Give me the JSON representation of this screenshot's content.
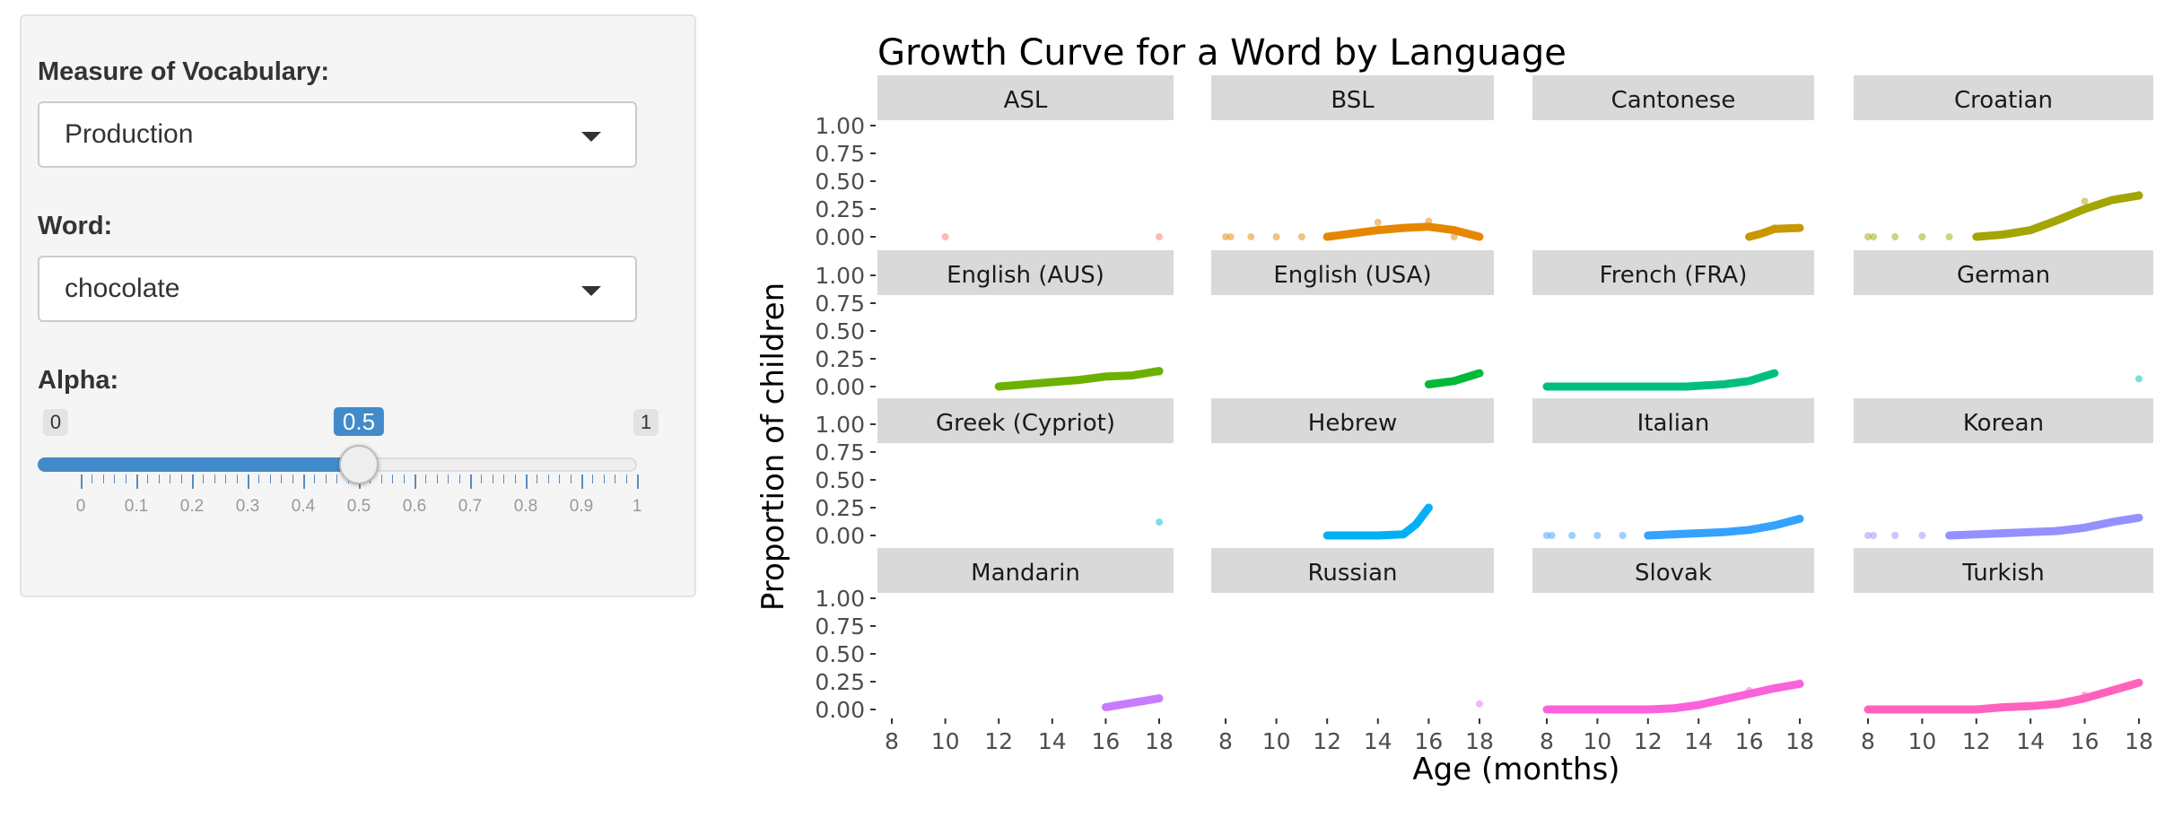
{
  "sidebar": {
    "measure": {
      "label": "Measure of Vocabulary:",
      "value": "Production"
    },
    "word": {
      "label": "Word:",
      "value": "chocolate"
    },
    "alpha": {
      "label": "Alpha:",
      "min": "0",
      "max": "1",
      "value": "0.5",
      "value_fraction": 0.5,
      "ticks": [
        "0",
        "0.1",
        "0.2",
        "0.3",
        "0.4",
        "0.5",
        "0.6",
        "0.7",
        "0.8",
        "0.9",
        "1"
      ]
    }
  },
  "colors": {
    "accent": "#428bca",
    "strip": "#d9d9d9",
    "text": "#333333"
  },
  "chart_data": {
    "type": "line",
    "title": "Growth Curve for a Word by Language",
    "xlabel": "Age (months)",
    "ylabel": "Proportion of children",
    "xlim": [
      8,
      18
    ],
    "ylim": [
      0,
      1
    ],
    "x_ticks": [
      8,
      10,
      12,
      14,
      16,
      18
    ],
    "y_ticks": [
      "0.00",
      "0.25",
      "0.50",
      "0.75",
      "1.00"
    ],
    "grid": false,
    "legend": "none",
    "facets": [
      {
        "name": "ASL",
        "color": "#f8766d",
        "points": [
          [
            10,
            0
          ],
          [
            18,
            0
          ]
        ],
        "curve": []
      },
      {
        "name": "BSL",
        "color": "#e58700",
        "points": [
          [
            8,
            0
          ],
          [
            8.2,
            0
          ],
          [
            9,
            0
          ],
          [
            10,
            0
          ],
          [
            11,
            0
          ],
          [
            12,
            0
          ],
          [
            14,
            0.13
          ],
          [
            16,
            0.14
          ],
          [
            17,
            0
          ],
          [
            18,
            0
          ]
        ],
        "curve": [
          [
            12,
            0
          ],
          [
            13,
            0.03
          ],
          [
            14,
            0.06
          ],
          [
            15,
            0.08
          ],
          [
            16,
            0.09
          ],
          [
            17,
            0.06
          ],
          [
            18,
            0
          ]
        ]
      },
      {
        "name": "Cantonese",
        "color": "#c99800",
        "points": [
          [
            16,
            0
          ],
          [
            17,
            0.08
          ],
          [
            18,
            0.08
          ]
        ],
        "curve": [
          [
            16,
            0
          ],
          [
            16.5,
            0.03
          ],
          [
            17,
            0.07
          ],
          [
            18,
            0.08
          ]
        ]
      },
      {
        "name": "Croatian",
        "color": "#a3a500",
        "points": [
          [
            8,
            0
          ],
          [
            8.2,
            0
          ],
          [
            9,
            0
          ],
          [
            10,
            0
          ],
          [
            11,
            0
          ],
          [
            16,
            0.32
          ],
          [
            18,
            0.38
          ]
        ],
        "curve": [
          [
            12,
            0
          ],
          [
            13,
            0.02
          ],
          [
            14,
            0.06
          ],
          [
            15,
            0.15
          ],
          [
            16,
            0.25
          ],
          [
            17,
            0.33
          ],
          [
            18,
            0.37
          ]
        ]
      },
      {
        "name": "English (AUS)",
        "color": "#6bb100",
        "points": [
          [
            12,
            0
          ],
          [
            18,
            0.13
          ]
        ],
        "curve": [
          [
            12,
            0
          ],
          [
            13,
            0.02
          ],
          [
            14,
            0.04
          ],
          [
            15,
            0.06
          ],
          [
            16,
            0.09
          ],
          [
            17,
            0.1
          ],
          [
            18,
            0.14
          ]
        ]
      },
      {
        "name": "English (USA)",
        "color": "#00ba38",
        "points": [
          [
            16,
            0.02
          ],
          [
            18,
            0.12
          ]
        ],
        "curve": [
          [
            16,
            0.02
          ],
          [
            17,
            0.05
          ],
          [
            18,
            0.12
          ]
        ]
      },
      {
        "name": "French (FRA)",
        "color": "#00bf7d",
        "points": [
          [
            8,
            0
          ],
          [
            13,
            0
          ],
          [
            17,
            0.12
          ]
        ],
        "curve": [
          [
            8,
            0
          ],
          [
            9,
            0
          ],
          [
            10,
            0
          ],
          [
            11,
            0
          ],
          [
            12,
            0
          ],
          [
            13.5,
            0
          ],
          [
            15,
            0.02
          ],
          [
            16,
            0.05
          ],
          [
            17,
            0.12
          ]
        ]
      },
      {
        "name": "German",
        "color": "#00c0b8",
        "points": [
          [
            18,
            0.07
          ]
        ],
        "curve": []
      },
      {
        "name": "Greek (Cypriot)",
        "color": "#00bcd8",
        "points": [
          [
            18,
            0.12
          ]
        ],
        "curve": []
      },
      {
        "name": "Hebrew",
        "color": "#00b0f6",
        "points": [
          [
            16,
            0.25
          ]
        ],
        "curve": [
          [
            12,
            0
          ],
          [
            13,
            0
          ],
          [
            14,
            0
          ],
          [
            15,
            0.01
          ],
          [
            15.5,
            0.1
          ],
          [
            16,
            0.25
          ]
        ]
      },
      {
        "name": "Italian",
        "color": "#35a2ff",
        "points": [
          [
            8,
            0
          ],
          [
            8.2,
            0
          ],
          [
            9,
            0
          ],
          [
            10,
            0
          ],
          [
            11,
            0
          ],
          [
            18,
            0.15
          ]
        ],
        "curve": [
          [
            12,
            0
          ],
          [
            13,
            0.01
          ],
          [
            14,
            0.02
          ],
          [
            15,
            0.03
          ],
          [
            16,
            0.05
          ],
          [
            17,
            0.09
          ],
          [
            18,
            0.15
          ]
        ]
      },
      {
        "name": "Korean",
        "color": "#9590ff",
        "points": [
          [
            8,
            0
          ],
          [
            8.2,
            0
          ],
          [
            9,
            0
          ],
          [
            10,
            0
          ],
          [
            15,
            0.05
          ],
          [
            17,
            0.12
          ]
        ],
        "curve": [
          [
            11,
            0
          ],
          [
            12,
            0.01
          ],
          [
            13,
            0.02
          ],
          [
            14,
            0.03
          ],
          [
            15,
            0.04
          ],
          [
            16,
            0.07
          ],
          [
            17,
            0.12
          ],
          [
            18,
            0.16
          ]
        ]
      },
      {
        "name": "Mandarin",
        "color": "#c77cff",
        "points": [
          [
            16,
            0.02
          ],
          [
            18,
            0.1
          ]
        ],
        "curve": [
          [
            16,
            0.02
          ],
          [
            17,
            0.06
          ],
          [
            18,
            0.1
          ]
        ]
      },
      {
        "name": "Russian",
        "color": "#e76bf3",
        "points": [
          [
            18,
            0.05
          ]
        ],
        "curve": []
      },
      {
        "name": "Slovak",
        "color": "#fa62db",
        "points": [
          [
            8,
            0
          ],
          [
            16,
            0.17
          ],
          [
            18,
            0.24
          ]
        ],
        "curve": [
          [
            8,
            0
          ],
          [
            10,
            0
          ],
          [
            12,
            0
          ],
          [
            13,
            0.01
          ],
          [
            14,
            0.04
          ],
          [
            15,
            0.09
          ],
          [
            16,
            0.14
          ],
          [
            17,
            0.19
          ],
          [
            18,
            0.23
          ]
        ]
      },
      {
        "name": "Turkish",
        "color": "#ff62bc",
        "points": [
          [
            8,
            0
          ],
          [
            16,
            0.13
          ],
          [
            18,
            0.24
          ]
        ],
        "curve": [
          [
            8,
            0
          ],
          [
            10,
            0
          ],
          [
            11,
            0
          ],
          [
            12,
            0
          ],
          [
            13,
            0.02
          ],
          [
            14,
            0.03
          ],
          [
            15,
            0.05
          ],
          [
            16,
            0.1
          ],
          [
            17,
            0.17
          ],
          [
            18,
            0.24
          ]
        ]
      }
    ]
  }
}
